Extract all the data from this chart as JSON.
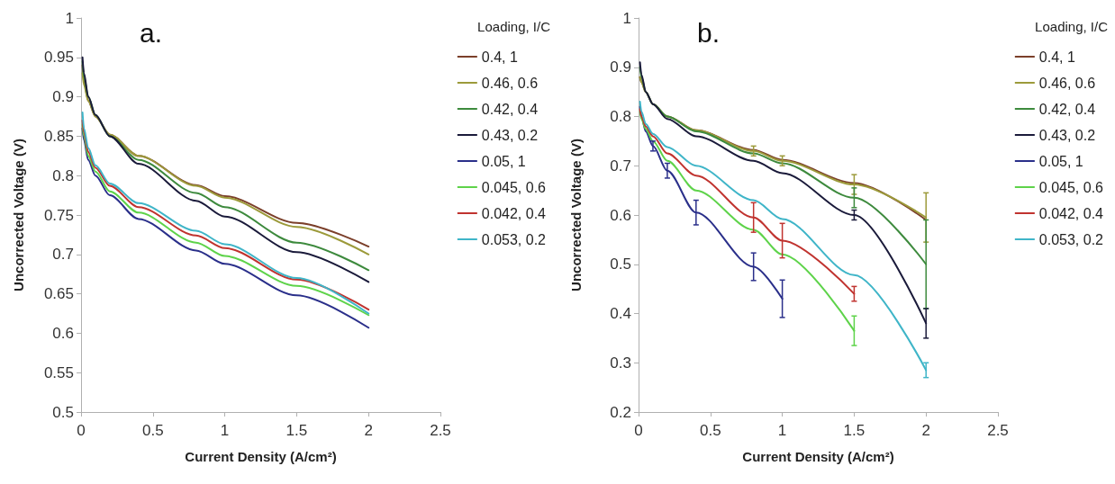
{
  "chart_data": [
    {
      "type": "line",
      "title": "a.",
      "xlabel": "Current Density (A/cm²)",
      "ylabel": "Uncorrected Voltage (V)",
      "legend_title": "Loading, I/C",
      "legend": "right",
      "grid": false,
      "marker": "none",
      "line_style": "solid",
      "x": [
        0.01,
        0.02,
        0.05,
        0.1,
        0.2,
        0.4,
        0.8,
        1,
        1.5,
        2
      ],
      "xlim": [
        0,
        2.5
      ],
      "xticks": [
        0,
        0.5,
        1,
        1.5,
        2,
        2.5
      ],
      "ylim": [
        0.5,
        1
      ],
      "yticks": [
        0.5,
        0.55,
        0.6,
        0.65,
        0.7,
        0.75,
        0.8,
        0.85,
        0.9,
        0.95,
        1
      ],
      "series": [
        {
          "name": "0.4, 1",
          "color": "#7b3f2a",
          "values": [
            0.94,
            0.92,
            0.895,
            0.875,
            0.852,
            0.825,
            0.788,
            0.774,
            0.74,
            0.71
          ]
        },
        {
          "name": "0.46, 0.6",
          "color": "#9c9a3a",
          "values": [
            0.93,
            0.915,
            0.895,
            0.875,
            0.852,
            0.825,
            0.787,
            0.772,
            0.735,
            0.7
          ]
        },
        {
          "name": "0.42, 0.4",
          "color": "#3d8a3d",
          "values": [
            0.945,
            0.925,
            0.9,
            0.877,
            0.85,
            0.82,
            0.778,
            0.76,
            0.715,
            0.68
          ]
        },
        {
          "name": "0.43, 0.2",
          "color": "#1a1a3a",
          "values": [
            0.95,
            0.93,
            0.9,
            0.877,
            0.85,
            0.815,
            0.768,
            0.748,
            0.703,
            0.665
          ]
        },
        {
          "name": "0.05, 1",
          "color": "#2a2f8a",
          "values": [
            0.86,
            0.845,
            0.82,
            0.8,
            0.775,
            0.745,
            0.705,
            0.688,
            0.648,
            0.607
          ]
        },
        {
          "name": "0.045, 0.6",
          "color": "#5ed34a",
          "values": [
            0.865,
            0.85,
            0.825,
            0.805,
            0.78,
            0.753,
            0.715,
            0.698,
            0.66,
            0.623
          ]
        },
        {
          "name": "0.042, 0.4",
          "color": "#c0332f",
          "values": [
            0.87,
            0.855,
            0.83,
            0.81,
            0.787,
            0.76,
            0.724,
            0.708,
            0.668,
            0.63
          ]
        },
        {
          "name": "0.053, 0.2",
          "color": "#3fb5c8",
          "values": [
            0.88,
            0.86,
            0.835,
            0.813,
            0.79,
            0.765,
            0.73,
            0.713,
            0.67,
            0.625
          ]
        }
      ]
    },
    {
      "type": "line",
      "title": "b.",
      "xlabel": "Current Density (A/cm²)",
      "ylabel": "Uncorrected Voltage (V)",
      "legend_title": "Loading, I/C",
      "legend": "right",
      "grid": false,
      "marker": "none",
      "line_style": "solid",
      "x": [
        0.01,
        0.02,
        0.05,
        0.1,
        0.2,
        0.4,
        0.8,
        1,
        1.5,
        2
      ],
      "xlim": [
        0,
        2.5
      ],
      "xticks": [
        0,
        0.5,
        1,
        1.5,
        2,
        2.5
      ],
      "ylim": [
        0.2,
        1
      ],
      "yticks": [
        0.2,
        0.3,
        0.4,
        0.5,
        0.6,
        0.7,
        0.8,
        0.9,
        1
      ],
      "series": [
        {
          "name": "0.4, 1",
          "color": "#7b3f2a",
          "values": [
            0.88,
            0.87,
            0.85,
            0.825,
            0.8,
            0.772,
            0.732,
            0.712,
            0.665,
            0.59
          ]
        },
        {
          "name": "0.46, 0.6",
          "color": "#9c9a3a",
          "values": [
            0.88,
            0.87,
            0.85,
            0.825,
            0.8,
            0.772,
            0.73,
            0.71,
            0.662,
            0.595
          ],
          "errors": [
            null,
            null,
            null,
            null,
            null,
            null,
            0.01,
            0.01,
            0.02,
            0.05
          ]
        },
        {
          "name": "0.42, 0.4",
          "color": "#3d8a3d",
          "values": [
            0.9,
            0.88,
            0.85,
            0.825,
            0.8,
            0.77,
            0.725,
            0.705,
            0.635,
            0.5
          ],
          "errors": [
            null,
            null,
            null,
            null,
            null,
            null,
            null,
            null,
            0.02,
            0.09
          ]
        },
        {
          "name": "0.43, 0.2",
          "color": "#1a1a3a",
          "values": [
            0.91,
            0.885,
            0.85,
            0.825,
            0.795,
            0.76,
            0.71,
            0.685,
            0.6,
            0.38
          ],
          "errors": [
            null,
            null,
            null,
            null,
            null,
            null,
            null,
            null,
            0.01,
            0.03
          ]
        },
        {
          "name": "0.05, 1",
          "color": "#2a2f8a",
          "values": [
            0.82,
            0.8,
            0.77,
            0.74,
            0.69,
            0.605,
            0.495,
            0.43,
            null,
            null
          ],
          "errors": [
            null,
            null,
            null,
            0.01,
            0.015,
            0.025,
            0.028,
            0.038,
            null,
            null
          ]
        },
        {
          "name": "0.045, 0.6",
          "color": "#5ed34a",
          "values": [
            0.81,
            0.795,
            0.775,
            0.75,
            0.71,
            0.65,
            0.57,
            0.52,
            0.365,
            null
          ],
          "errors": [
            null,
            null,
            null,
            null,
            null,
            null,
            null,
            null,
            0.03,
            null
          ]
        },
        {
          "name": "0.042, 0.4",
          "color": "#c0332f",
          "values": [
            0.815,
            0.8,
            0.78,
            0.76,
            0.725,
            0.68,
            0.595,
            0.548,
            0.44,
            null
          ],
          "errors": [
            null,
            null,
            null,
            null,
            null,
            null,
            0.03,
            0.035,
            0.015,
            null
          ]
        },
        {
          "name": "0.053, 0.2",
          "color": "#3fb5c8",
          "values": [
            0.83,
            0.81,
            0.785,
            0.765,
            0.738,
            0.7,
            0.63,
            0.592,
            0.478,
            0.285
          ],
          "errors": [
            null,
            null,
            null,
            null,
            null,
            null,
            null,
            null,
            null,
            0.015
          ]
        }
      ]
    }
  ]
}
